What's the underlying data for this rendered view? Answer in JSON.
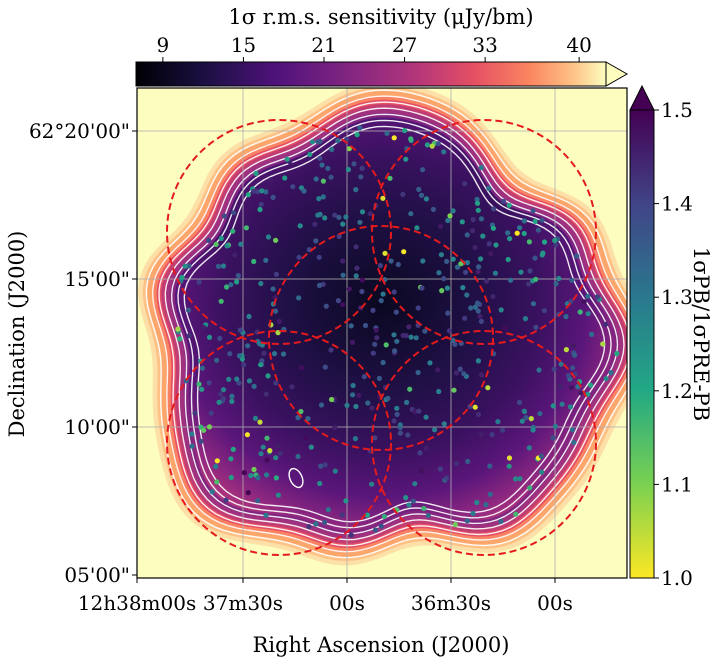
{
  "chart_data": {
    "type": "heatmap",
    "title": "",
    "xlabel": "Right Ascension (J2000)",
    "ylabel": "Declination (J2000)",
    "x_ticks": [
      "12h38m00s",
      "37m30s",
      "00s",
      "36m30s",
      "00s"
    ],
    "y_ticks": [
      "05'00\"",
      "10'00\"",
      "15'00\"",
      "62°20'00\""
    ],
    "grid": true,
    "top_colorbar": {
      "label": "1σ r.m.s. sensitivity (μJy/bm)",
      "ticks": [
        9,
        15,
        21,
        27,
        33,
        40
      ],
      "range": [
        7,
        42
      ],
      "colormap": "magma",
      "extend": "max"
    },
    "right_colorbar": {
      "label": "1σPB/1σPRE-PB",
      "ticks": [
        "1.0",
        "1.1",
        "1.2",
        "1.3",
        "1.4",
        "1.5"
      ],
      "range": [
        1.0,
        1.5
      ],
      "colormap": "viridis_r",
      "extend": "max"
    },
    "contour_levels_uJy": [
      12,
      15,
      18,
      21,
      24,
      27,
      30
    ],
    "pointings": [
      {
        "ra_label": "12h37m15s",
        "dec_arcmin_offset": 16.5
      },
      {
        "ra_label": "12h37m00s",
        "dec_arcmin_offset": 12.5
      },
      {
        "ra_label": "12h36m45s",
        "dec_arcmin_offset": 16.5
      },
      {
        "ra_label": "12h37m30s",
        "dec_arcmin_offset": 9.5
      },
      {
        "ra_label": "12h36m30s",
        "dec_arcmin_offset": 9.5
      }
    ],
    "source_ratio_range": [
      1.0,
      1.5
    ]
  },
  "colors": {
    "background_fill": "#fcfdbf",
    "pointing_circles": "#e41a1c",
    "contours": "#ffffff",
    "grid": "#b0b0b0"
  }
}
